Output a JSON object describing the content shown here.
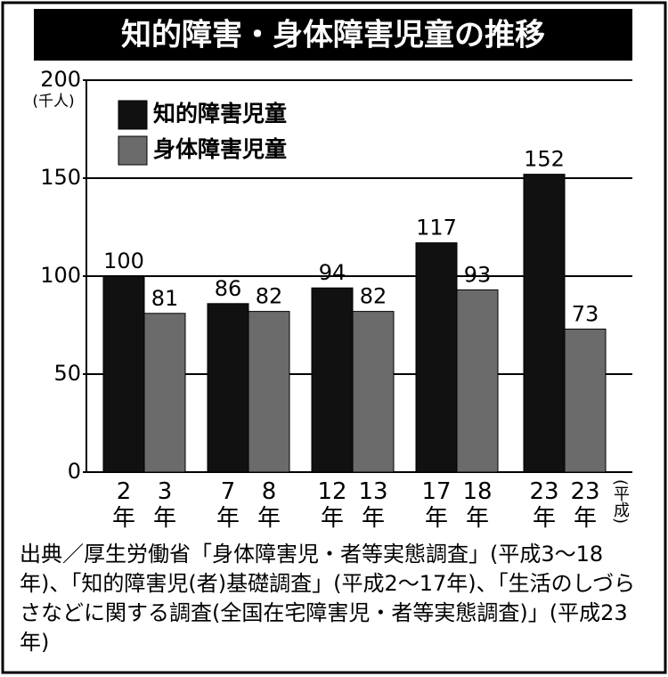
{
  "chart_data": {
    "type": "bar",
    "title": "知的障害・身体障害児童の推移",
    "y_unit": "(千人)",
    "x_note": "(平成)",
    "ylim": [
      0,
      200
    ],
    "yticks": [
      0,
      50,
      100,
      150,
      200
    ],
    "grid": true,
    "legend": "upper left",
    "series": [
      {
        "name": "知的障害児童",
        "color": "#111111",
        "x_labels": [
          "2年",
          "7年",
          "12年",
          "17年",
          "23年"
        ],
        "values": [
          100,
          86,
          94,
          117,
          152
        ]
      },
      {
        "name": "身体障害児童",
        "color": "#6b6b6b",
        "x_labels": [
          "3年",
          "8年",
          "13年",
          "18年",
          "23年"
        ],
        "values": [
          81,
          82,
          82,
          93,
          73
        ]
      }
    ],
    "source": "出典／厚生労働省「身体障害児・者等実態調査」(平成3～18年)、「知的障害児(者)基礎調査」(平成2～17年)、「生活のしづらさなどに関する調査(全国在宅障害児・者等実態調査)」(平成23年)"
  }
}
